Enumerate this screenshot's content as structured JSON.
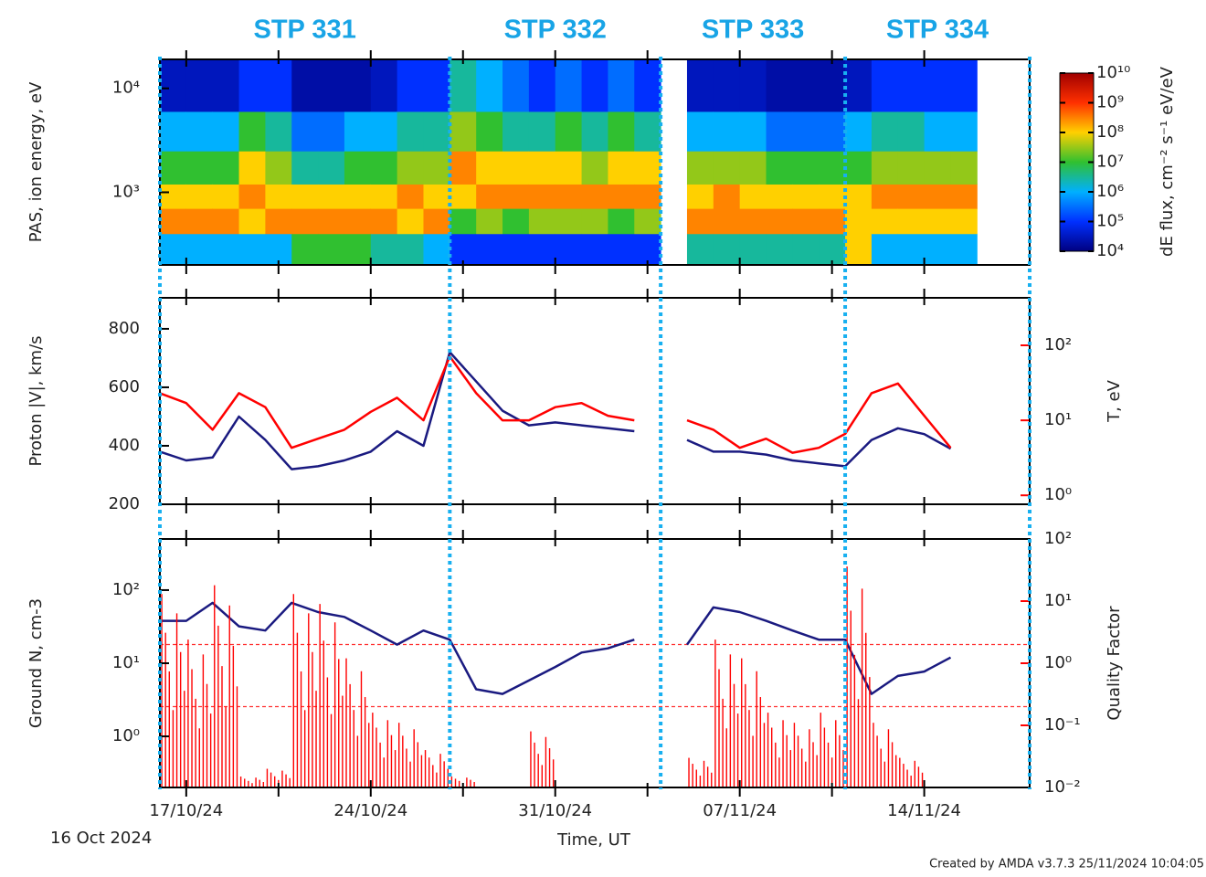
{
  "chart_data": [
    {
      "type": "heatmap",
      "ylabel": "PAS, ion energy, eV",
      "ylim": [
        200,
        19000
      ],
      "ylog": true,
      "yticks": [
        {
          "value": 1000,
          "label": "10³"
        },
        {
          "value": 10000,
          "label": "10⁴"
        }
      ],
      "segments": [
        {
          "label": "STP 331",
          "start": "2024-10-16",
          "end": "2024-10-27"
        },
        {
          "label": "STP 332",
          "start": "2024-10-27",
          "end": "2024-11-04"
        },
        {
          "label": "STP 333",
          "start": "2024-11-04",
          "end": "2024-11-11"
        },
        {
          "label": "STP 334",
          "start": "2024-11-11",
          "end": "2024-11-18"
        }
      ],
      "segment_color": "#18b0f0",
      "x": [
        "2024-10-16",
        "2024-10-17",
        "2024-10-18",
        "2024-10-19",
        "2024-10-20",
        "2024-10-21",
        "2024-10-22",
        "2024-10-23",
        "2024-10-24",
        "2024-10-25",
        "2024-10-26",
        "2024-10-27",
        "2024-10-28",
        "2024-10-29",
        "2024-10-30",
        "2024-10-31",
        "2024-11-01",
        "2024-11-02",
        "2024-11-03",
        "2024-11-04",
        "2024-11-05",
        "2024-11-06",
        "2024-11-07",
        "2024-11-08",
        "2024-11-09",
        "2024-11-10",
        "2024-11-11",
        "2024-11-12",
        "2024-11-13",
        "2024-11-14",
        "2024-11-15",
        "2024-11-16",
        "2024-11-17"
      ],
      "energy_bins": [
        200,
        400,
        700,
        1200,
        2500,
        6000,
        19000
      ],
      "z": [
        [
          1000000.0,
          300000000.0,
          100000000.0,
          10000000.0,
          1000000.0,
          30000.0
        ],
        [
          1000000.0,
          300000000.0,
          100000000.0,
          10000000.0,
          1000000.0,
          30000.0
        ],
        [
          1000000.0,
          300000000.0,
          100000000.0,
          10000000.0,
          1000000.0,
          30000.0
        ],
        [
          1000000.0,
          100000000.0,
          300000000.0,
          100000000.0,
          10000000.0,
          100000.0
        ],
        [
          1000000.0,
          300000000.0,
          100000000.0,
          30000000.0,
          3000000.0,
          100000.0
        ],
        [
          10000000.0,
          300000000.0,
          100000000.0,
          3000000.0,
          300000.0,
          20000.0
        ],
        [
          10000000.0,
          300000000.0,
          100000000.0,
          3000000.0,
          300000.0,
          20000.0
        ],
        [
          10000000.0,
          300000000.0,
          100000000.0,
          10000000.0,
          1000000.0,
          20000.0
        ],
        [
          3000000.0,
          300000000.0,
          100000000.0,
          10000000.0,
          1000000.0,
          30000.0
        ],
        [
          3000000.0,
          100000000.0,
          300000000.0,
          30000000.0,
          3000000.0,
          100000.0
        ],
        [
          1000000.0,
          300000000.0,
          100000000.0,
          30000000.0,
          3000000.0,
          100000.0
        ],
        [
          100000.0,
          10000000.0,
          100000000.0,
          300000000.0,
          30000000.0,
          3000000.0
        ],
        [
          100000.0,
          30000000.0,
          300000000.0,
          100000000.0,
          10000000.0,
          1000000.0
        ],
        [
          100000.0,
          10000000.0,
          300000000.0,
          100000000.0,
          3000000.0,
          300000.0
        ],
        [
          100000.0,
          30000000.0,
          300000000.0,
          100000000.0,
          3000000.0,
          100000.0
        ],
        [
          100000.0,
          30000000.0,
          300000000.0,
          100000000.0,
          10000000.0,
          300000.0
        ],
        [
          100000.0,
          30000000.0,
          300000000.0,
          30000000.0,
          3000000.0,
          100000.0
        ],
        [
          100000.0,
          10000000.0,
          300000000.0,
          100000000.0,
          10000000.0,
          300000.0
        ],
        [
          100000.0,
          30000000.0,
          300000000.0,
          100000000.0,
          3000000.0,
          100000.0
        ],
        null,
        [
          3000000.0,
          300000000.0,
          100000000.0,
          30000000.0,
          1000000.0,
          30000.0
        ],
        [
          3000000.0,
          300000000.0,
          300000000.0,
          30000000.0,
          1000000.0,
          30000.0
        ],
        [
          3000000.0,
          300000000.0,
          100000000.0,
          30000000.0,
          1000000.0,
          30000.0
        ],
        [
          3000000.0,
          300000000.0,
          100000000.0,
          10000000.0,
          300000.0,
          20000.0
        ],
        [
          3000000.0,
          300000000.0,
          100000000.0,
          10000000.0,
          300000.0,
          20000.0
        ],
        [
          3000000.0,
          300000000.0,
          100000000.0,
          10000000.0,
          300000.0,
          20000.0
        ],
        [
          100000000.0,
          100000000.0,
          100000000.0,
          10000000.0,
          1000000.0,
          30000.0
        ],
        [
          1000000.0,
          100000000.0,
          300000000.0,
          30000000.0,
          3000000.0,
          100000.0
        ],
        [
          1000000.0,
          100000000.0,
          300000000.0,
          30000000.0,
          3000000.0,
          100000.0
        ],
        [
          1000000.0,
          100000000.0,
          300000000.0,
          30000000.0,
          1000000.0,
          100000.0
        ],
        [
          1000000.0,
          100000000.0,
          300000000.0,
          30000000.0,
          1000000.0,
          100000.0
        ],
        null,
        null
      ],
      "zlim": [
        10000,
        10000000000
      ],
      "zlog": true,
      "colorscale": [
        "#000080",
        "#0030ff",
        "#00b0ff",
        "#30c030",
        "#ffd000",
        "#ff3000",
        "#a00000"
      ],
      "colorbar_label": "dE flux, cm⁻² s⁻¹ eV/eV",
      "colorbar_ticks": [
        {
          "value": 10000,
          "label": "10⁴"
        },
        {
          "value": 100000,
          "label": "10⁵"
        },
        {
          "value": 1000000,
          "label": "10⁶"
        },
        {
          "value": 10000000,
          "label": "10⁷"
        },
        {
          "value": 100000000,
          "label": "10⁸"
        },
        {
          "value": 1000000000,
          "label": "10⁹"
        },
        {
          "value": 10000000000,
          "label": "10¹⁰"
        }
      ]
    },
    {
      "type": "line",
      "ylabel": "Proton |V|, km/s",
      "y2label": "T, eV",
      "ylim": [
        200,
        906
      ],
      "yticks": [
        200,
        400,
        600,
        800
      ],
      "y2lim": [
        0.76,
        430
      ],
      "y2log": true,
      "y2ticks": [
        {
          "value": 1,
          "label": "10⁰"
        },
        {
          "value": 10,
          "label": "10¹"
        },
        {
          "value": 100,
          "label": "10²"
        }
      ],
      "series": [
        {
          "name": "Proton |V|",
          "color": "#1a1a80",
          "style": "line",
          "values": [
            380,
            350,
            360,
            500,
            420,
            320,
            330,
            350,
            380,
            450,
            400,
            720,
            620,
            520,
            470,
            480,
            470,
            460,
            450,
            null,
            420,
            380,
            380,
            370,
            350,
            340,
            330,
            420,
            460,
            440,
            390,
            null,
            null
          ]
        },
        {
          "name": "T",
          "color": "#ff0000",
          "style": "line",
          "axis": "y2",
          "values": [
            23,
            17,
            7.5,
            23,
            15,
            4.3,
            5.7,
            7.5,
            13,
            20,
            10,
            71,
            23,
            10,
            10,
            15,
            17,
            11.5,
            10,
            null,
            10,
            7.5,
            4.3,
            5.7,
            3.7,
            4.3,
            6.6,
            23,
            31,
            11.5,
            4.3,
            null,
            null
          ]
        }
      ]
    },
    {
      "type": "line",
      "ylabel": "Ground N, cm-3",
      "y2label": "Quality Factor",
      "ylim": [
        0.2,
        500
      ],
      "ylog": true,
      "yticks": [
        {
          "value": 1,
          "label": "10⁰"
        },
        {
          "value": 10,
          "label": "10¹"
        },
        {
          "value": 100,
          "label": "10²"
        }
      ],
      "y2lim": [
        0.01,
        100
      ],
      "y2log": true,
      "y2ticks": [
        {
          "value": 0.01,
          "label": "10⁻²"
        },
        {
          "value": 0.1,
          "label": "10⁻¹"
        },
        {
          "value": 1,
          "label": "10⁰"
        },
        {
          "value": 10,
          "label": "10¹"
        },
        {
          "value": 100,
          "label": "10²"
        }
      ],
      "reference_lines": [
        2,
        0.2
      ],
      "reference_color": "#ff3030",
      "series": [
        {
          "name": "Ground N",
          "color": "#1a1a80",
          "style": "line",
          "values": [
            38,
            38,
            67,
            32,
            28,
            67,
            50,
            43,
            28,
            18,
            28,
            21,
            4.4,
            3.8,
            5.8,
            8.9,
            14,
            16,
            21,
            null,
            18,
            58,
            50,
            38,
            28,
            21,
            21,
            3.8,
            6.7,
            7.7,
            12,
            null,
            null
          ]
        },
        {
          "name": "Quality Factor",
          "color": "#ff0000",
          "style": "spikes",
          "axis": "y2",
          "values": [
            13,
            2.4,
            18,
            0.015,
            0.02,
            13,
            9,
            1.2,
            0.16,
            0.11,
            0.04,
            0.015,
            null,
            null,
            0.08,
            null,
            null,
            null,
            null,
            null,
            0.03,
            2.4,
            1.2,
            0.16,
            0.11,
            0.16,
            36,
            0.11,
            0.03,
            null,
            null,
            null,
            null
          ]
        }
      ],
      "xlim": [
        "2024-10-16",
        "2024-11-18"
      ],
      "xticks": [
        {
          "value": "2024-10-17",
          "label": "17/10/24"
        },
        {
          "value": "2024-10-24",
          "label": "24/10/24"
        },
        {
          "value": "2024-10-31",
          "label": "31/10/24"
        },
        {
          "value": "2024-11-07",
          "label": "07/11/24"
        },
        {
          "value": "2024-11-14",
          "label": "14/11/24"
        }
      ],
      "start_label": "16 Oct 2024",
      "xlabel": "Time, UT",
      "credit": "Created by AMDA v3.7.3 25/11/2024 10:04:05"
    }
  ]
}
